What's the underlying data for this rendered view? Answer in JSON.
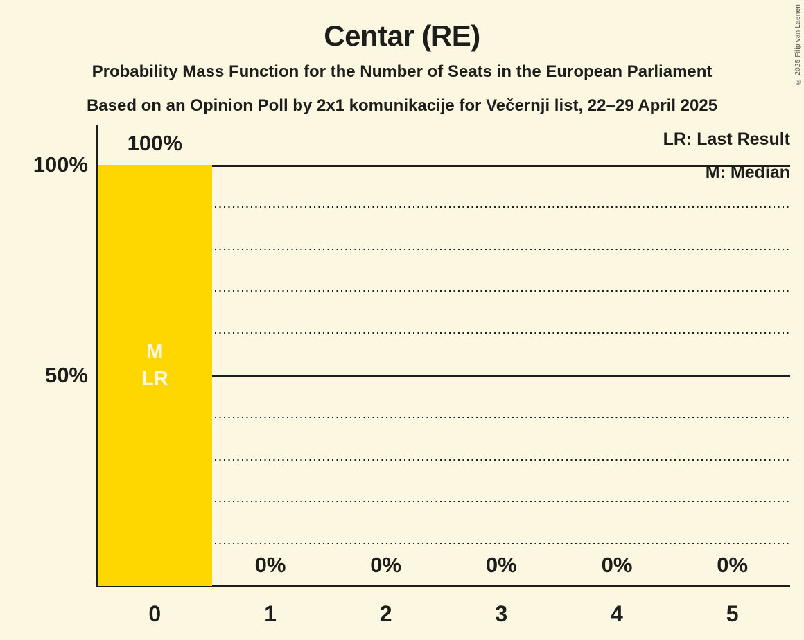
{
  "title": "Centar (RE)",
  "subtitle1": "Probability Mass Function for the Number of Seats in the European Parliament",
  "subtitle2": "Based on an Opinion Poll by 2x1 komunikacije for Večernji list, 22–29 April 2025",
  "copyright": "© 2025 Filip van Laenen",
  "legend": {
    "lr": "LR: Last Result",
    "m": "M: Median"
  },
  "colors": {
    "background": "#FCF7E1",
    "bar": "#FFD700",
    "text": "#1D1D1B",
    "copyright_text": "#55534D",
    "bar_annotation_text": "#FCF7E1"
  },
  "chart_data": {
    "type": "bar",
    "title": "Centar (RE)",
    "xlabel": "",
    "ylabel": "",
    "categories": [
      "0",
      "1",
      "2",
      "3",
      "4",
      "5"
    ],
    "values": [
      100,
      0,
      0,
      0,
      0,
      0
    ],
    "value_labels": [
      "100%",
      "0%",
      "0%",
      "0%",
      "0%",
      "0%"
    ],
    "ylim": [
      0,
      100
    ],
    "y_axis_ticks": [
      {
        "value": 100,
        "label": "100%"
      },
      {
        "value": 50,
        "label": "50%"
      }
    ],
    "gridlines": {
      "solid": [
        100,
        50
      ],
      "dotted": [
        90,
        80,
        70,
        60,
        40,
        30,
        20,
        10
      ]
    },
    "annotations": [
      {
        "category_index": 0,
        "lines": [
          "M",
          "LR"
        ]
      }
    ],
    "legend_position": "top-right",
    "grid": "dotted-horizontal"
  }
}
